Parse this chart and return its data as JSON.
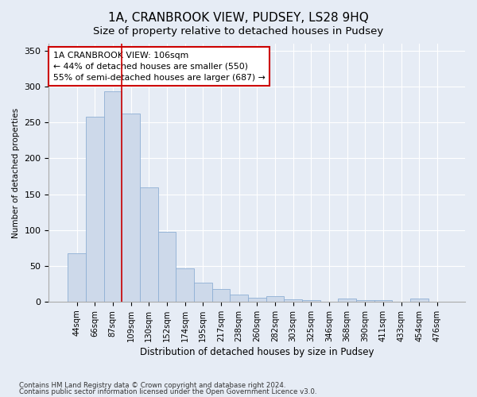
{
  "title": "1A, CRANBROOK VIEW, PUDSEY, LS28 9HQ",
  "subtitle": "Size of property relative to detached houses in Pudsey",
  "xlabel": "Distribution of detached houses by size in Pudsey",
  "ylabel": "Number of detached properties",
  "bar_labels": [
    "44sqm",
    "66sqm",
    "87sqm",
    "109sqm",
    "130sqm",
    "152sqm",
    "174sqm",
    "195sqm",
    "217sqm",
    "238sqm",
    "260sqm",
    "282sqm",
    "303sqm",
    "325sqm",
    "346sqm",
    "368sqm",
    "390sqm",
    "411sqm",
    "433sqm",
    "454sqm",
    "476sqm"
  ],
  "bar_heights": [
    68,
    258,
    293,
    263,
    160,
    97,
    46,
    27,
    18,
    10,
    5,
    8,
    3,
    2,
    0,
    4,
    2,
    2,
    0,
    4,
    0
  ],
  "bar_color": "#cdd9ea",
  "bar_edge_color": "#8eafd4",
  "vline_x_index": 2.5,
  "vline_color": "#cc0000",
  "annotation_text": "1A CRANBROOK VIEW: 106sqm\n← 44% of detached houses are smaller (550)\n55% of semi-detached houses are larger (687) →",
  "annotation_box_color": "white",
  "annotation_box_edge": "#cc0000",
  "ylim": [
    0,
    360
  ],
  "yticks": [
    0,
    50,
    100,
    150,
    200,
    250,
    300,
    350
  ],
  "footnote1": "Contains HM Land Registry data © Crown copyright and database right 2024.",
  "footnote2": "Contains public sector information licensed under the Open Government Licence v3.0.",
  "background_color": "#e6ecf5",
  "plot_bg_color": "#e6ecf5",
  "grid_color": "#ffffff",
  "title_fontsize": 11,
  "subtitle_fontsize": 9.5
}
